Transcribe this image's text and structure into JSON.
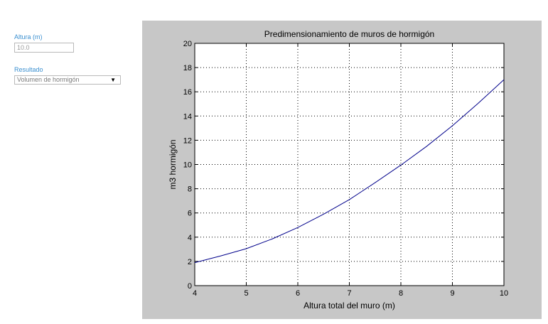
{
  "form": {
    "altura_label": "Altura (m)",
    "altura_value": "10.0",
    "resultado_label": "Resultado",
    "resultado_selected": "Volumen de hormigón",
    "dropdown_arrow": "▼"
  },
  "chart_data": {
    "type": "line",
    "title": "Predimensionamiento de muros de hormigón",
    "xlabel": "Altura total del muro (m)",
    "ylabel": "m3 hormigón",
    "xlim": [
      4,
      10
    ],
    "ylim": [
      0,
      20
    ],
    "x_ticks": [
      "4",
      "5",
      "6",
      "7",
      "8",
      "9",
      "10"
    ],
    "y_ticks": [
      "0",
      "2",
      "4",
      "6",
      "8",
      "10",
      "12",
      "14",
      "16",
      "18",
      "20"
    ],
    "grid": true,
    "series": [
      {
        "color": "#00008b",
        "x": [
          4,
          4.5,
          5,
          5.5,
          6,
          6.5,
          7,
          7.5,
          8,
          8.5,
          9,
          9.5,
          10
        ],
        "y": [
          1.9,
          2.45,
          3.05,
          3.85,
          4.8,
          5.9,
          7.1,
          8.5,
          9.95,
          11.5,
          13.2,
          15.05,
          17.0
        ]
      }
    ]
  }
}
